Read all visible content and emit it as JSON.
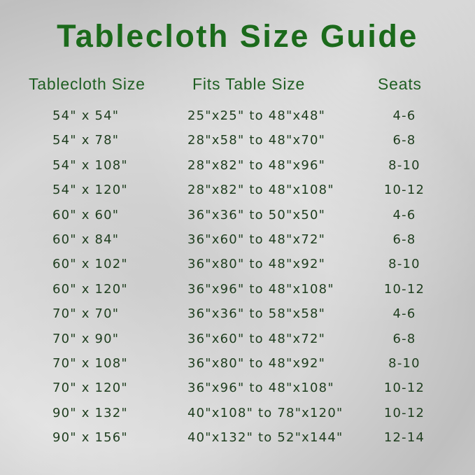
{
  "title": "Tablecloth Size Guide",
  "headers": {
    "size": "Tablecloth Size",
    "fits": "Fits Table Size",
    "seats": "Seats"
  },
  "colors": {
    "title": "#1b6a1b",
    "header": "#1f5e22",
    "text": "#1e3d1e"
  },
  "rows": [
    {
      "size": "54\" x 54\"",
      "fits": "25\"x25\" to 48\"x48\"",
      "seats": "4-6"
    },
    {
      "size": "54\" x 78\"",
      "fits": "28\"x58\" to 48\"x70\"",
      "seats": "6-8"
    },
    {
      "size": "54\" x 108\"",
      "fits": "28\"x82\" to 48\"x96\"",
      "seats": "8-10"
    },
    {
      "size": "54\" x 120\"",
      "fits": "28\"x82\" to 48\"x108\"",
      "seats": "10-12"
    },
    {
      "size": "60\" x 60\"",
      "fits": "36\"x36\" to 50\"x50\"",
      "seats": "4-6"
    },
    {
      "size": "60\" x 84\"",
      "fits": "36\"x60\" to 48\"x72\"",
      "seats": "6-8"
    },
    {
      "size": "60\" x 102\"",
      "fits": "36\"x80\" to 48\"x92\"",
      "seats": "8-10"
    },
    {
      "size": "60\" x 120\"",
      "fits": "36\"x96\" to 48\"x108\"",
      "seats": "10-12"
    },
    {
      "size": "70\" x 70\"",
      "fits": "36\"x36\" to 58\"x58\"",
      "seats": "4-6"
    },
    {
      "size": "70\" x 90\"",
      "fits": "36\"x60\" to 48\"x72\"",
      "seats": "6-8"
    },
    {
      "size": "70\" x 108\"",
      "fits": "36\"x80\" to 48\"x92\"",
      "seats": "8-10"
    },
    {
      "size": "70\" x 120\"",
      "fits": "36\"x96\" to 48\"x108\"",
      "seats": "10-12"
    },
    {
      "size": "90\" x 132\"",
      "fits": "40\"x108\" to 78\"x120\"",
      "seats": "10-12"
    },
    {
      "size": "90\" x 156\"",
      "fits": "40\"x132\" to 52\"x144\"",
      "seats": "12-14"
    }
  ]
}
